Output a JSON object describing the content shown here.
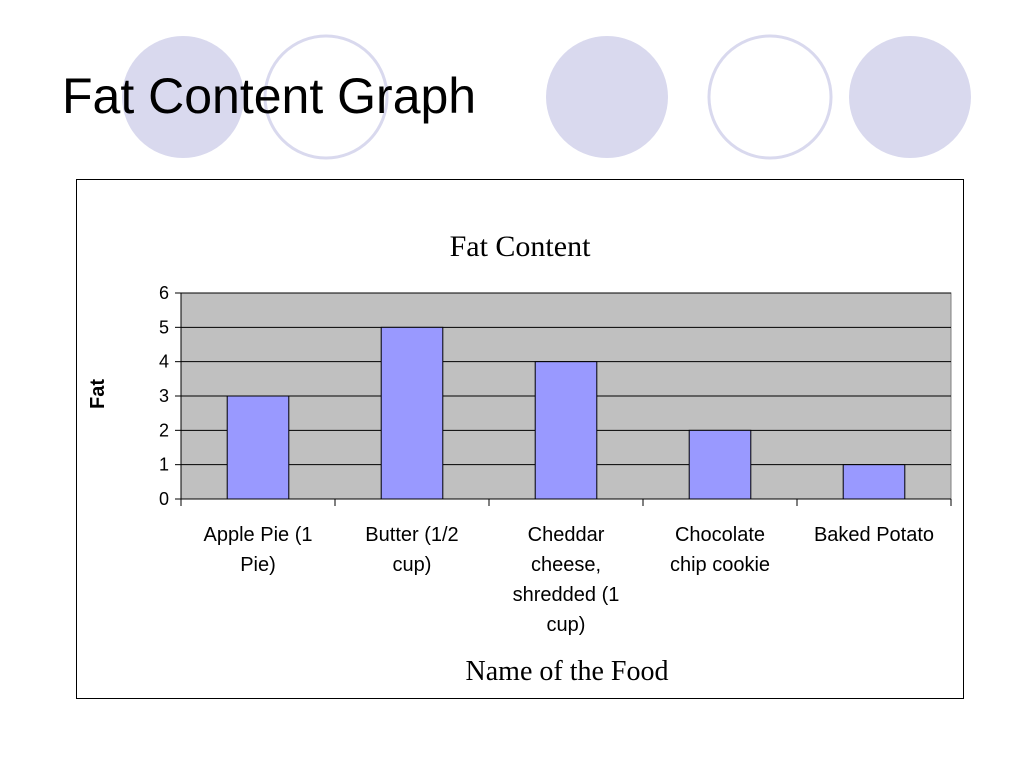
{
  "slide": {
    "title": "Fat Content Graph",
    "decor_fill_color": "#d9d9ee",
    "decor_stroke_color": "#d9d9ee"
  },
  "chart_data": {
    "type": "bar",
    "title": "Fat Content",
    "xlabel": "Name of the Food",
    "ylabel": "Fat",
    "categories": [
      [
        "Apple Pie (1",
        "Pie)"
      ],
      [
        "Butter (1/2",
        "cup)"
      ],
      [
        "Cheddar",
        "cheese,",
        "shredded (1",
        "cup)"
      ],
      [
        "Chocolate",
        "chip cookie"
      ],
      [
        "Baked Potato"
      ]
    ],
    "values": [
      3,
      5,
      4,
      2,
      1
    ],
    "ylim": [
      0,
      6
    ],
    "yticks": [
      "0",
      "1",
      "2",
      "3",
      "4",
      "5",
      "6"
    ],
    "grid": true,
    "legend": "none",
    "bar_color": "#9999ff",
    "plot_background": "#c0c0c0"
  }
}
